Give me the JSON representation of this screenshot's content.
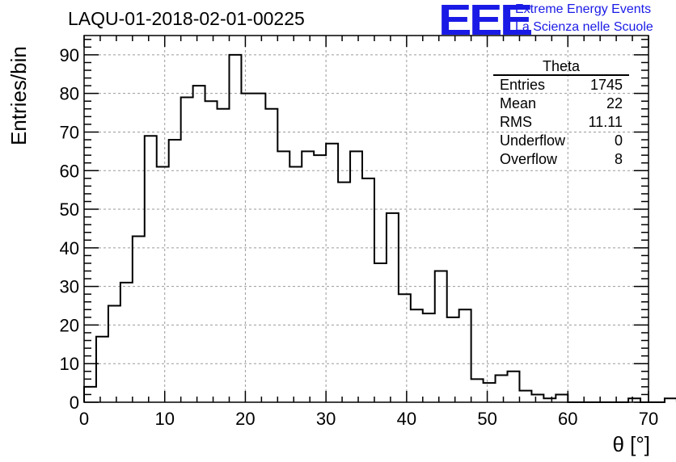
{
  "header": {
    "title": "LAQU-01-2018-02-01-00225",
    "logo_mark": "EEE",
    "logo_line1": "Extreme Energy Events",
    "logo_line2": "La Scienza nelle Scuole"
  },
  "stats": {
    "title": "Theta",
    "rows": [
      {
        "label": "Entries",
        "value": "1745"
      },
      {
        "label": "Mean",
        "value": "22"
      },
      {
        "label": "RMS",
        "value": "11.11"
      },
      {
        "label": "Underflow",
        "value": "0"
      },
      {
        "label": "Overflow",
        "value": "8"
      }
    ]
  },
  "chart_data": {
    "type": "bar",
    "style": "step-histogram",
    "xlabel": "θ [°]",
    "ylabel": "Entries/bin",
    "xlim": [
      0,
      70
    ],
    "ylim": [
      0,
      95
    ],
    "xticks": [
      0,
      10,
      20,
      30,
      40,
      50,
      60,
      70
    ],
    "yticks": [
      0,
      10,
      20,
      30,
      40,
      50,
      60,
      70,
      80,
      90
    ],
    "bin_width": 1.5,
    "grid": true,
    "values": [
      4,
      17,
      25,
      31,
      43,
      69,
      61,
      68,
      79,
      82,
      78,
      76,
      90,
      80,
      80,
      76,
      65,
      61,
      65,
      64,
      67,
      57,
      65,
      58,
      36,
      49,
      28,
      24,
      23,
      34,
      22,
      24,
      6,
      5,
      7,
      8,
      3,
      2,
      1,
      2,
      0,
      0,
      0,
      0,
      0,
      1,
      0,
      0,
      1
    ],
    "line_color": "#000000",
    "grid_color": "#9a9a9a"
  }
}
